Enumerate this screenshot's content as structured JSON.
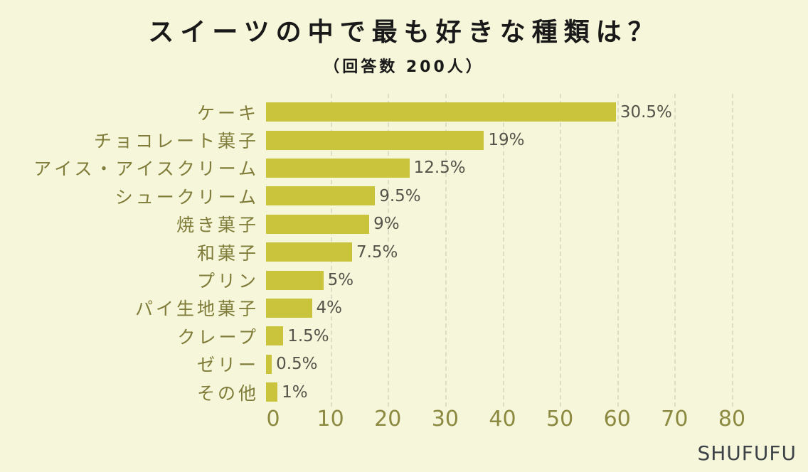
{
  "header": {
    "title": "スイーツの中で最も好きな種類は？",
    "subtitle": "（回答数 200人）"
  },
  "footer": {
    "brand": "SHUFUFU"
  },
  "chart_data": {
    "type": "bar",
    "orientation": "horizontal",
    "title": "スイーツの中で最も好きな種類は？",
    "subtitle": "（回答数 200人）",
    "categories": [
      "ケーキ",
      "チョコレート菓子",
      "アイス・アイスクリーム",
      "シュークリーム",
      "焼き菓子",
      "和菓子",
      "プリン",
      "パイ生地菓子",
      "クレープ",
      "ゼリー",
      "その他"
    ],
    "values": [
      61,
      38,
      25,
      19,
      18,
      15,
      10,
      8,
      3,
      1,
      2
    ],
    "value_labels": [
      "30.5%",
      "19%",
      "12.5%",
      "9.5%",
      "9%",
      "7.5%",
      "5%",
      "4%",
      "1.5%",
      "0.5%",
      "1%"
    ],
    "xlabel": "",
    "ylabel": "",
    "xlim": [
      0,
      80
    ],
    "xticks": [
      0,
      10,
      20,
      30,
      40,
      50,
      60,
      70,
      80
    ],
    "grid": "dashed vertical gridlines at each x tick",
    "legend": "none",
    "colors": {
      "background": "#f6f6da",
      "bar": "#c9c43c",
      "category_label": "#7f7c39",
      "value_label": "#55544a",
      "tick_label": "#8c8941",
      "gridline": "#deddc6",
      "title": "#191919",
      "brand": "#3d4247"
    }
  }
}
